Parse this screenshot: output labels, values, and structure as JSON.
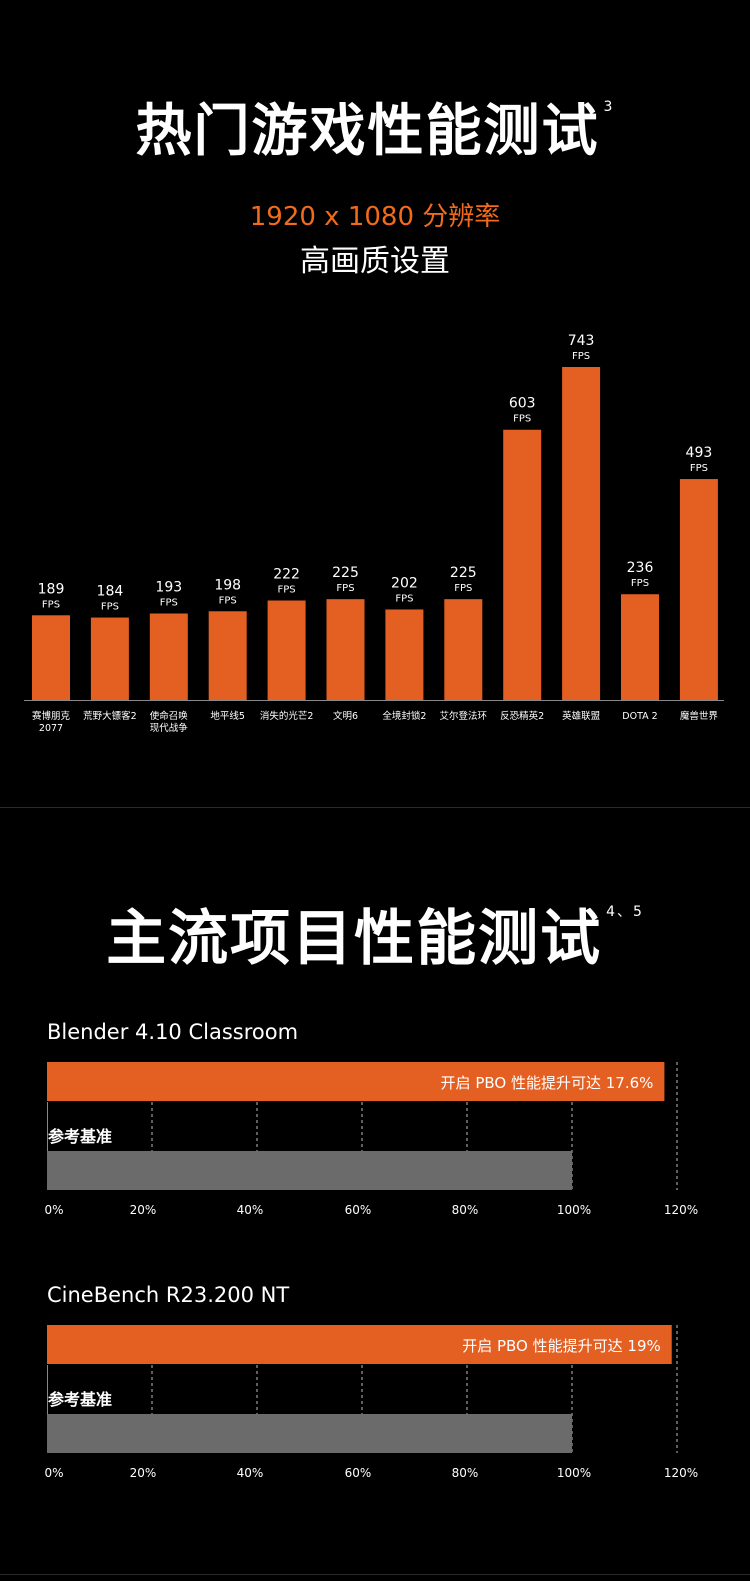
{
  "section1": {
    "title": "热门游戏性能测试",
    "title_sup": "3",
    "resolution": "1920 x 1080 分辨率",
    "quality": "高画质设置"
  },
  "section2": {
    "title": "主流项目性能测试",
    "title_sup": "4、5"
  },
  "colors": {
    "accent": "#e35f22",
    "baseline": "#6b6b6b",
    "background": "#000000"
  },
  "chart_data": [
    {
      "type": "bar",
      "unit": "FPS",
      "categories": [
        [
          "赛博朋克",
          "2077"
        ],
        [
          "荒野大镖客2"
        ],
        [
          "使命召唤",
          "现代战争"
        ],
        [
          "地平线5"
        ],
        [
          "消失的光芒2"
        ],
        [
          "文明6"
        ],
        [
          "全境封锁2"
        ],
        [
          "艾尔登法环"
        ],
        [
          "反恐精英2"
        ],
        [
          "英雄联盟"
        ],
        [
          "DOTA 2"
        ],
        [
          "魔兽世界"
        ]
      ],
      "values": [
        189,
        184,
        193,
        198,
        222,
        225,
        202,
        225,
        603,
        743,
        236,
        493
      ]
    },
    {
      "type": "bar",
      "orientation": "horizontal",
      "title": "Blender 4.10  Classroom",
      "ticks": [
        "0%",
        "20%",
        "40%",
        "60%",
        "80%",
        "100%",
        "120%"
      ],
      "xlim": [
        0,
        120
      ],
      "bars": [
        {
          "name": "开启 PBO 性能提升可达 17.6%",
          "value": 117.6
        },
        {
          "name": "参考基准",
          "value": 100
        }
      ]
    },
    {
      "type": "bar",
      "orientation": "horizontal",
      "title": "CineBench R23.200  NT",
      "ticks": [
        "0%",
        "20%",
        "40%",
        "60%",
        "80%",
        "100%",
        "120%"
      ],
      "xlim": [
        0,
        120
      ],
      "bars": [
        {
          "name": "开启 PBO 性能提升可达 19%",
          "value": 119
        },
        {
          "name": "参考基准",
          "value": 100
        }
      ]
    }
  ]
}
